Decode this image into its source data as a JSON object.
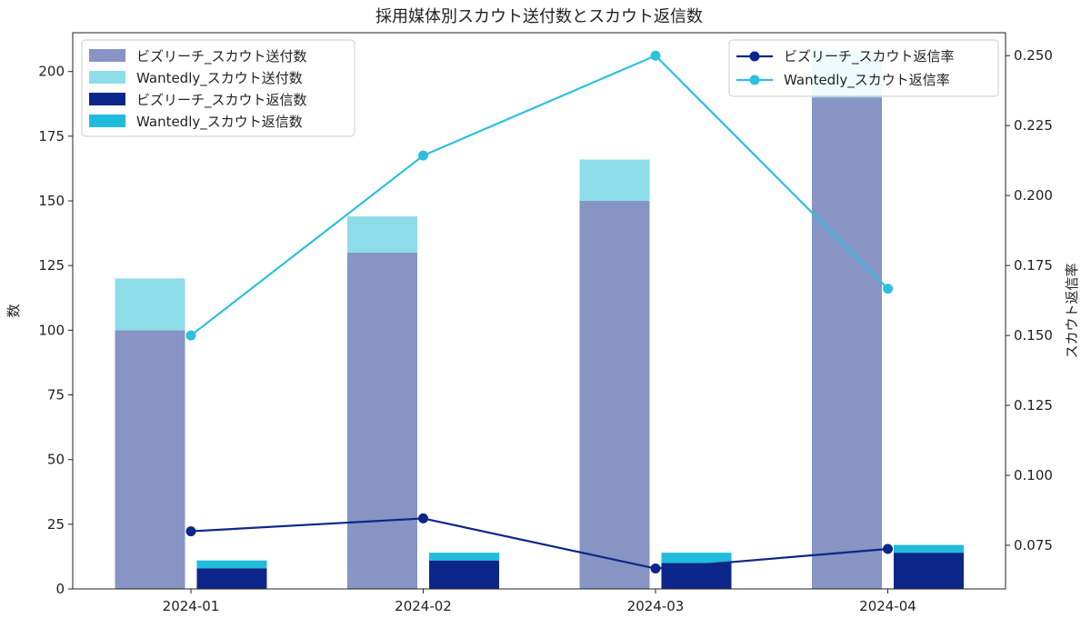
{
  "chart_data": {
    "type": "bar",
    "title": "採用媒体別スカウト送付数とスカウト返信数",
    "xlabel": "",
    "ylabel": "数",
    "y2label": "スカウト返信率",
    "categories": [
      "2024-01",
      "2024-02",
      "2024-03",
      "2024-04"
    ],
    "ylim": [
      0,
      215
    ],
    "y2lim": [
      0.0594,
      0.2582
    ],
    "yticks": [
      "0",
      "25",
      "50",
      "75",
      "100",
      "125",
      "150",
      "175",
      "200"
    ],
    "y2ticks": [
      "0.075",
      "0.100",
      "0.125",
      "0.150",
      "0.175",
      "0.200",
      "0.225",
      "0.250"
    ],
    "grid": false,
    "stacked_groups": [
      {
        "group": "送付数",
        "series": [
          {
            "name": "ビズリーチ_スカウト送付数",
            "values": [
              100,
              130,
              150,
              190
            ],
            "color": "#8794c4"
          },
          {
            "name": "Wantedly_スカウト送付数",
            "values": [
              20,
              14,
              16,
              18
            ],
            "color": "#8ddde9"
          }
        ]
      },
      {
        "group": "返信数",
        "series": [
          {
            "name": "ビズリーチ_スカウト返信数",
            "values": [
              8,
              11,
              10,
              14
            ],
            "color": "#0d2689"
          },
          {
            "name": "Wantedly_スカウト返信数",
            "values": [
              3,
              3,
              4,
              3
            ],
            "color": "#20bcdc"
          }
        ]
      }
    ],
    "line_series": [
      {
        "name": "ビズリーチ_スカウト返信率",
        "axis": "right",
        "values": [
          0.08,
          0.0846,
          0.0667,
          0.0737
        ],
        "color": "#0d2689"
      },
      {
        "name": "Wantedly_スカウト返信率",
        "axis": "right",
        "values": [
          0.15,
          0.2143,
          0.25,
          0.1667
        ],
        "color": "#2cc0de"
      }
    ],
    "legend_bars_placement": "upper-left",
    "legend_lines_placement": "upper-right"
  }
}
